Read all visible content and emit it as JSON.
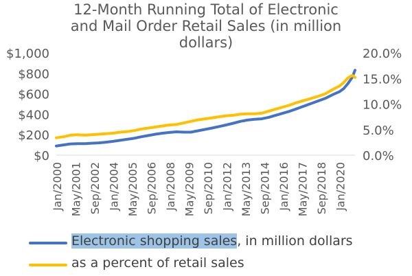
{
  "chart_data": {
    "type": "line",
    "title_lines": [
      "12-Month Running Total of Electronic",
      "and Mail Order Retail Sales (in million",
      "dollars)"
    ],
    "x_tick_labels": [
      "Jan/2000",
      "May/2001",
      "Sep/2002",
      "Jan/2004",
      "May/2005",
      "Sep/2006",
      "Jan/2008",
      "May/2009",
      "Sep/2010",
      "Jan/2012",
      "May/2013",
      "Sep/2014",
      "Jan/2016",
      "May/2017",
      "Sep/2018",
      "Jan/2020"
    ],
    "y_left": {
      "ticks": [
        "$1,000",
        "$800",
        "$600",
        "$400",
        "$200",
        "$0"
      ],
      "range": [
        0,
        1000
      ]
    },
    "y_right": {
      "ticks": [
        "20.0%",
        "15.0%",
        "10.0%",
        "5.0%",
        "0.0%"
      ],
      "range": [
        0,
        20
      ]
    },
    "series": [
      {
        "name": "Electronic shopping sales, in million dollars",
        "name_highlighted": "Electronic shopping sales",
        "name_rest": ", in million dollars",
        "axis": "left",
        "color": "#4472c4",
        "x": [
          2000.0,
          2000.5,
          2001.0,
          2001.5,
          2002.0,
          2002.5,
          2003.0,
          2003.5,
          2004.0,
          2004.5,
          2005.0,
          2005.5,
          2006.0,
          2006.5,
          2007.0,
          2007.5,
          2008.0,
          2008.5,
          2009.0,
          2009.5,
          2010.0,
          2010.5,
          2011.0,
          2011.5,
          2012.0,
          2012.5,
          2013.0,
          2013.5,
          2014.0,
          2014.5,
          2015.0,
          2015.5,
          2016.0,
          2016.5,
          2017.0,
          2017.5,
          2018.0,
          2018.5,
          2019.0,
          2019.5,
          2020.0,
          2020.3,
          2020.6,
          2020.9,
          2021.1
        ],
        "values": [
          90,
          100,
          110,
          112,
          112,
          117,
          120,
          127,
          135,
          145,
          155,
          165,
          180,
          192,
          205,
          215,
          222,
          228,
          225,
          225,
          238,
          252,
          265,
          280,
          295,
          312,
          330,
          343,
          350,
          355,
          370,
          390,
          410,
          430,
          455,
          480,
          505,
          530,
          555,
          590,
          620,
          650,
          700,
          760,
          830
        ]
      },
      {
        "name": "as a percent of retail sales",
        "axis": "right",
        "color": "#ffc000",
        "x": [
          2000.0,
          2000.5,
          2001.0,
          2001.5,
          2002.0,
          2002.5,
          2003.0,
          2003.5,
          2004.0,
          2004.5,
          2005.0,
          2005.5,
          2006.0,
          2006.5,
          2007.0,
          2007.5,
          2008.0,
          2008.5,
          2009.0,
          2009.5,
          2010.0,
          2010.5,
          2011.0,
          2011.5,
          2012.0,
          2012.5,
          2013.0,
          2013.5,
          2014.0,
          2014.5,
          2015.0,
          2015.5,
          2016.0,
          2016.5,
          2017.0,
          2017.5,
          2018.0,
          2018.5,
          2019.0,
          2019.5,
          2020.0,
          2020.3,
          2020.6,
          2020.9,
          2021.1
        ],
        "values": [
          3.4,
          3.6,
          3.9,
          4.0,
          3.9,
          4.0,
          4.1,
          4.2,
          4.3,
          4.5,
          4.6,
          4.8,
          5.1,
          5.3,
          5.5,
          5.7,
          5.9,
          6.0,
          6.3,
          6.6,
          6.9,
          7.1,
          7.3,
          7.5,
          7.7,
          7.8,
          8.0,
          8.1,
          8.1,
          8.2,
          8.6,
          9.0,
          9.4,
          9.8,
          10.3,
          10.7,
          11.1,
          11.5,
          12.0,
          12.8,
          13.5,
          14.2,
          15.1,
          15.6,
          15.2
        ]
      }
    ],
    "x_range": [
      2000.0,
      2021.1
    ],
    "grid": false,
    "legend_position": "bottom"
  }
}
